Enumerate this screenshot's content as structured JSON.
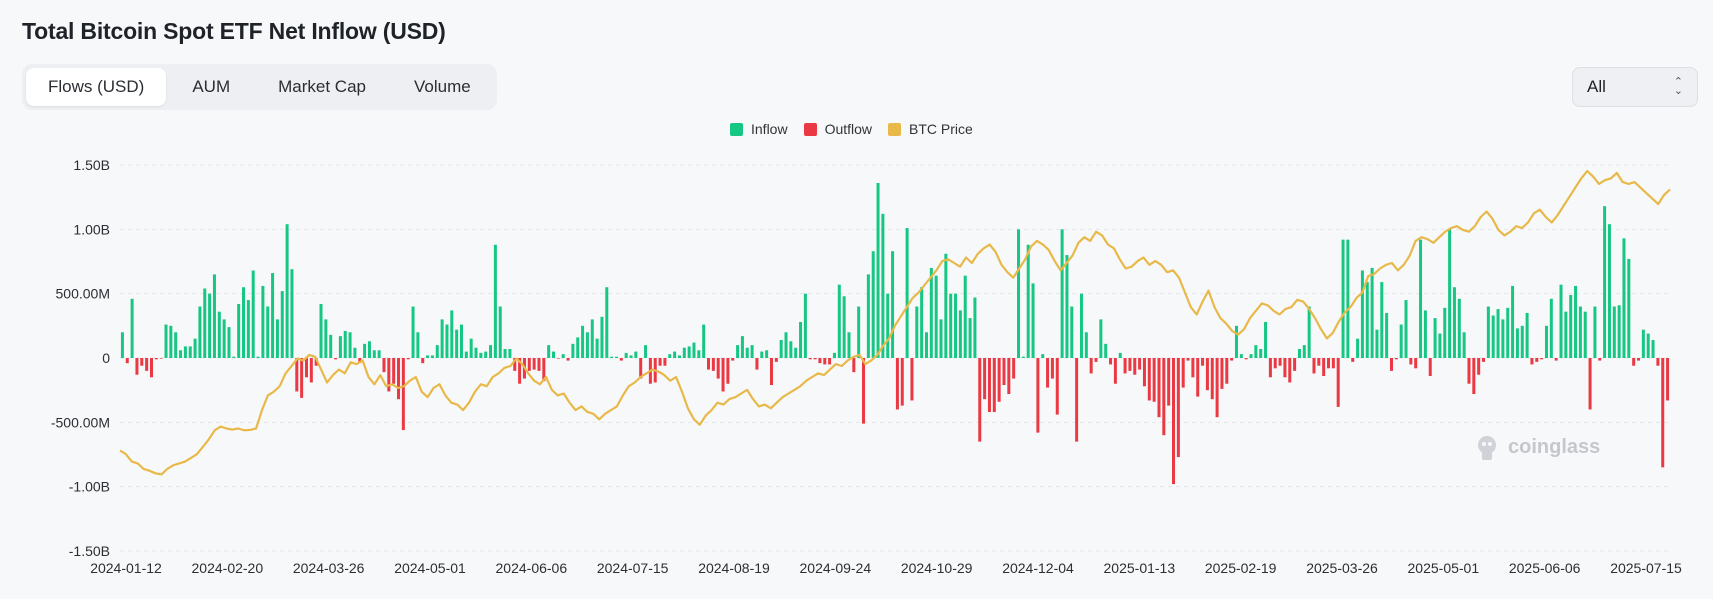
{
  "title": "Total Bitcoin Spot ETF Net Inflow (USD)",
  "tabs": [
    {
      "label": "Flows (USD)",
      "active": true
    },
    {
      "label": "AUM",
      "active": false
    },
    {
      "label": "Market Cap",
      "active": false
    },
    {
      "label": "Volume",
      "active": false
    }
  ],
  "range_select": {
    "value": "All"
  },
  "watermark": "coinglass",
  "colors": {
    "inflow": "#16c784",
    "outflow": "#ea3943",
    "price": "#e8b949",
    "grid": "#e4e6ea",
    "text": "#2b2f33"
  },
  "chart_data": {
    "type": "bar",
    "title": "",
    "legend": [
      "Inflow",
      "Outflow",
      "BTC Price"
    ],
    "legend_position": "top-center",
    "grid": true,
    "ylim": [
      -1500000000,
      1500000000
    ],
    "y_ticks": [
      {
        "value": 1500000000,
        "label": "1.50B"
      },
      {
        "value": 1000000000,
        "label": "1.00B"
      },
      {
        "value": 500000000,
        "label": "500.00M"
      },
      {
        "value": 0,
        "label": "0"
      },
      {
        "value": -500000000,
        "label": "-500.00M"
      },
      {
        "value": -1000000000,
        "label": "-1.00B"
      },
      {
        "value": -1500000000,
        "label": "-1.50B"
      }
    ],
    "x_ticks": [
      "2024-01-12",
      "2024-02-20",
      "2024-03-26",
      "2024-05-01",
      "2024-06-06",
      "2024-07-15",
      "2024-08-19",
      "2024-09-24",
      "2024-10-29",
      "2024-12-04",
      "2025-01-13",
      "2025-02-19",
      "2025-03-26",
      "2025-05-01",
      "2025-06-06",
      "2025-07-15"
    ],
    "flows_musd": [
      200,
      -40,
      460,
      -130,
      -60,
      -100,
      -150,
      -10,
      -5,
      260,
      250,
      200,
      60,
      90,
      90,
      150,
      400,
      540,
      500,
      650,
      360,
      300,
      240,
      10,
      420,
      550,
      450,
      680,
      10,
      560,
      400,
      660,
      300,
      520,
      1040,
      690,
      -260,
      -310,
      -150,
      -190,
      -60,
      420,
      300,
      180,
      -10,
      170,
      210,
      200,
      80,
      -40,
      110,
      130,
      60,
      60,
      -110,
      -260,
      -200,
      -320,
      -560,
      -10,
      400,
      200,
      -40,
      20,
      20,
      100,
      300,
      260,
      370,
      220,
      260,
      50,
      150,
      80,
      40,
      50,
      100,
      880,
      400,
      70,
      70,
      -100,
      -200,
      -160,
      -100,
      -90,
      -100,
      -180,
      100,
      50,
      -5,
      30,
      -20,
      110,
      160,
      250,
      200,
      300,
      150,
      320,
      550,
      10,
      10,
      -20,
      40,
      20,
      50,
      -160,
      100,
      -200,
      -190,
      -60,
      -60,
      30,
      50,
      20,
      80,
      90,
      120,
      60,
      260,
      -90,
      -100,
      -160,
      -260,
      -200,
      -20,
      100,
      170,
      80,
      100,
      -90,
      50,
      60,
      -210,
      -30,
      140,
      200,
      130,
      80,
      280,
      500,
      -10,
      -10,
      -40,
      -50,
      -50,
      40,
      570,
      480,
      200,
      -110,
      400,
      -510,
      650,
      830,
      1360,
      1120,
      500,
      830,
      -400,
      -370,
      1010,
      -330,
      400,
      550,
      200,
      700,
      640,
      300,
      810,
      500,
      500,
      370,
      640,
      310,
      470,
      -650,
      -320,
      -420,
      -420,
      -340,
      -210,
      -280,
      -160,
      1000,
      10,
      880,
      580,
      -580,
      30,
      -230,
      -160,
      -440,
      1000,
      800,
      400,
      -650,
      500,
      200,
      -120,
      -30,
      300,
      110,
      -50,
      -200,
      40,
      -120,
      -100,
      -130,
      -90,
      -220,
      -330,
      -340,
      -460,
      -600,
      -370,
      -980,
      -770,
      -230,
      -20,
      -150,
      -300,
      -60,
      -250,
      -320,
      -460,
      -240,
      -200,
      -20,
      250,
      30,
      -10,
      30,
      100,
      70,
      280,
      -150,
      -80,
      -60,
      -150,
      -190,
      -100,
      70,
      100,
      400,
      -120,
      -60,
      -140,
      -80,
      -80,
      -380,
      920,
      920,
      -30,
      150,
      680,
      590,
      700,
      220,
      590,
      350,
      -100,
      -10,
      260,
      450,
      -50,
      -80,
      920,
      370,
      -140,
      310,
      190,
      390,
      1000,
      550,
      460,
      200,
      -200,
      -280,
      -130,
      -30,
      400,
      330,
      380,
      300,
      390,
      560,
      230,
      250,
      350,
      -50,
      -30,
      -10,
      250,
      460,
      -20,
      570,
      360,
      490,
      560,
      400,
      360,
      -400,
      400,
      -20,
      1180,
      1040,
      400,
      410,
      930,
      770,
      -60,
      -20,
      220,
      190,
      140,
      -60,
      -850,
      -330
    ],
    "btc_price_usd": [
      46000,
      45000,
      43000,
      42500,
      41000,
      40500,
      39800,
      39500,
      41000,
      42000,
      42500,
      43000,
      44000,
      45000,
      47000,
      49000,
      51500,
      52500,
      52000,
      51700,
      52000,
      51500,
      51600,
      52000,
      57000,
      61000,
      62000,
      63500,
      67000,
      69000,
      71000,
      70500,
      72000,
      71500,
      68000,
      64500,
      66500,
      68000,
      67000,
      70000,
      69500,
      70500,
      66000,
      64000,
      66500,
      63500,
      64000,
      63000,
      63500,
      65000,
      66000,
      62000,
      60500,
      63000,
      64000,
      61000,
      59000,
      58500,
      57000,
      59000,
      62000,
      64000,
      63500,
      66000,
      67000,
      68500,
      69000,
      71000,
      69500,
      67000,
      65000,
      64000,
      66000,
      62500,
      61000,
      61500,
      59000,
      57000,
      58000,
      56500,
      56000,
      54500,
      56000,
      57000,
      58000,
      61000,
      63500,
      64500,
      66000,
      67000,
      68000,
      67500,
      66500,
      65000,
      66000,
      62000,
      57500,
      54500,
      53000,
      55500,
      57000,
      59000,
      58500,
      60000,
      60500,
      61500,
      62500,
      60000,
      58000,
      58500,
      57500,
      59000,
      60500,
      61500,
      62500,
      63500,
      65000,
      66000,
      67000,
      66500,
      68000,
      69500,
      69000,
      70500,
      71500,
      72000,
      69500,
      70500,
      72000,
      74500,
      76500,
      80000,
      82500,
      85000,
      87500,
      89000,
      91000,
      93000,
      95000,
      97500,
      98000,
      97000,
      96000,
      98500,
      97000,
      99500,
      101000,
      102000,
      100000,
      96500,
      94500,
      93000,
      95500,
      98000,
      101500,
      103000,
      102000,
      100500,
      97500,
      95000,
      97000,
      99000,
      102500,
      104000,
      103000,
      105500,
      104500,
      102000,
      101000,
      98000,
      95500,
      96000,
      97500,
      98500,
      96500,
      97500,
      96500,
      94500,
      95000,
      93000,
      89000,
      85000,
      83000,
      86500,
      89500,
      85000,
      82000,
      80500,
      78500,
      77500,
      79000,
      82000,
      84000,
      86000,
      85500,
      84000,
      83000,
      84500,
      85000,
      87000,
      86500,
      84500,
      82000,
      79000,
      76500,
      78000,
      81000,
      83500,
      85000,
      87500,
      89000,
      93500,
      94000,
      95500,
      96500,
      97000,
      95000,
      96500,
      99000,
      103000,
      104000,
      103500,
      102500,
      104000,
      105500,
      106500,
      107000,
      106000,
      105500,
      107000,
      109500,
      111000,
      109000,
      106000,
      104500,
      105500,
      107000,
      106500,
      108000,
      110500,
      111500,
      109500,
      108000,
      110000,
      112500,
      115000,
      117500,
      120000,
      122000,
      120500,
      118500,
      119500,
      120000,
      121500,
      119000,
      118500,
      119000,
      117500,
      116000,
      114500,
      113000,
      115500,
      117000
    ]
  }
}
